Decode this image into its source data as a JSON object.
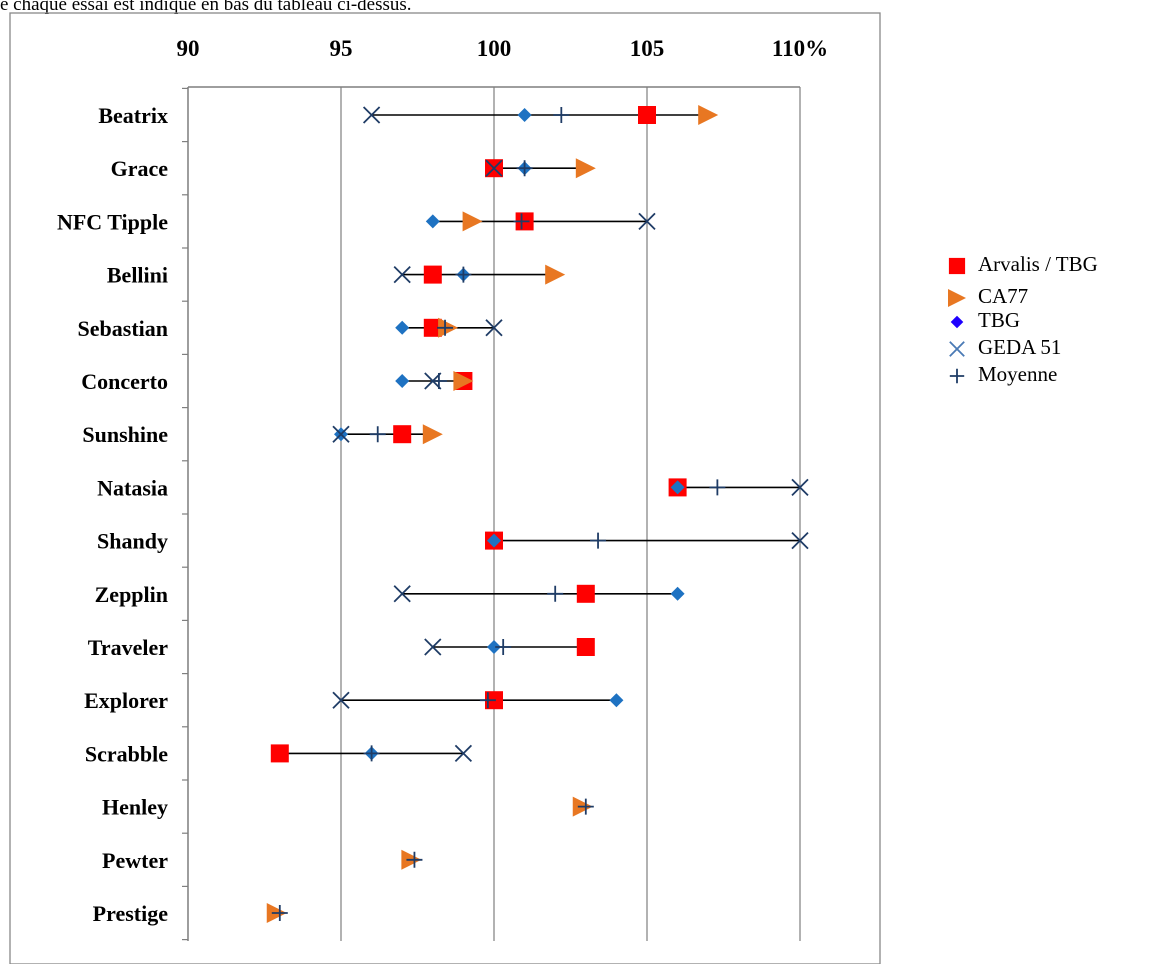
{
  "caption": "e chaque essai est indiqué en bas du tableau ci-dessus.",
  "chart_data": {
    "type": "scatter",
    "orientation": "horizontal",
    "x_ticks": [
      "90",
      "95",
      "100",
      "105",
      "110%"
    ],
    "x_values": [
      90,
      95,
      100,
      105,
      110
    ],
    "xlim": [
      90,
      110
    ],
    "grid": true,
    "legend_position": "right",
    "categories": [
      "Beatrix",
      "Grace",
      "NFC Tipple",
      "Bellini",
      "Sebastian",
      "Concerto",
      "Sunshine",
      "Natasia",
      "Shandy",
      "Zepplin",
      "Traveler",
      "Explorer",
      "Scrabble",
      "Henley",
      "Pewter",
      "Prestige"
    ],
    "series": [
      {
        "name": "Arvalis / TBG",
        "marker": "square",
        "color": "#ff0000",
        "values": [
          105,
          100,
          101,
          98,
          98,
          99,
          97,
          106,
          100,
          103,
          103,
          100,
          93,
          null,
          null,
          null
        ]
      },
      {
        "name": "CA77",
        "marker": "triangle-right",
        "color": "#e87722",
        "values": [
          107,
          103,
          99.3,
          102,
          98.5,
          99,
          98,
          null,
          null,
          null,
          null,
          null,
          null,
          102.9,
          97.3,
          92.9
        ]
      },
      {
        "name": "TBG",
        "marker": "diamond",
        "color": "#1e72c2",
        "values": [
          101,
          101,
          98,
          99,
          97,
          97,
          95,
          106,
          100,
          106,
          100,
          104,
          96,
          null,
          null,
          null
        ]
      },
      {
        "name": "GEDA 51",
        "marker": "x",
        "color": "#1f3c66",
        "values": [
          96,
          100,
          105,
          97,
          100,
          98,
          95,
          110,
          110,
          97,
          98,
          95,
          99,
          null,
          null,
          null
        ]
      },
      {
        "name": "Moyenne",
        "marker": "plus",
        "color": "#1f3c66",
        "values": [
          102.2,
          101,
          100.9,
          99,
          98.4,
          98.2,
          96.2,
          107.3,
          103.4,
          102,
          100.3,
          99.8,
          96,
          103,
          97.4,
          93
        ]
      }
    ]
  },
  "legend": {
    "items": [
      {
        "label": "Arvalis / TBG",
        "marker": "square",
        "color": "#ff0000"
      },
      {
        "label": "CA77",
        "marker": "triangle-right",
        "color": "#e87722"
      },
      {
        "label": "TBG",
        "marker": "diamond",
        "color": "#1e00ff"
      },
      {
        "label": "GEDA 51",
        "marker": "x",
        "color": "#4a7ab5"
      },
      {
        "label": "Moyenne",
        "marker": "plus",
        "color": "#1f3c66"
      }
    ]
  }
}
